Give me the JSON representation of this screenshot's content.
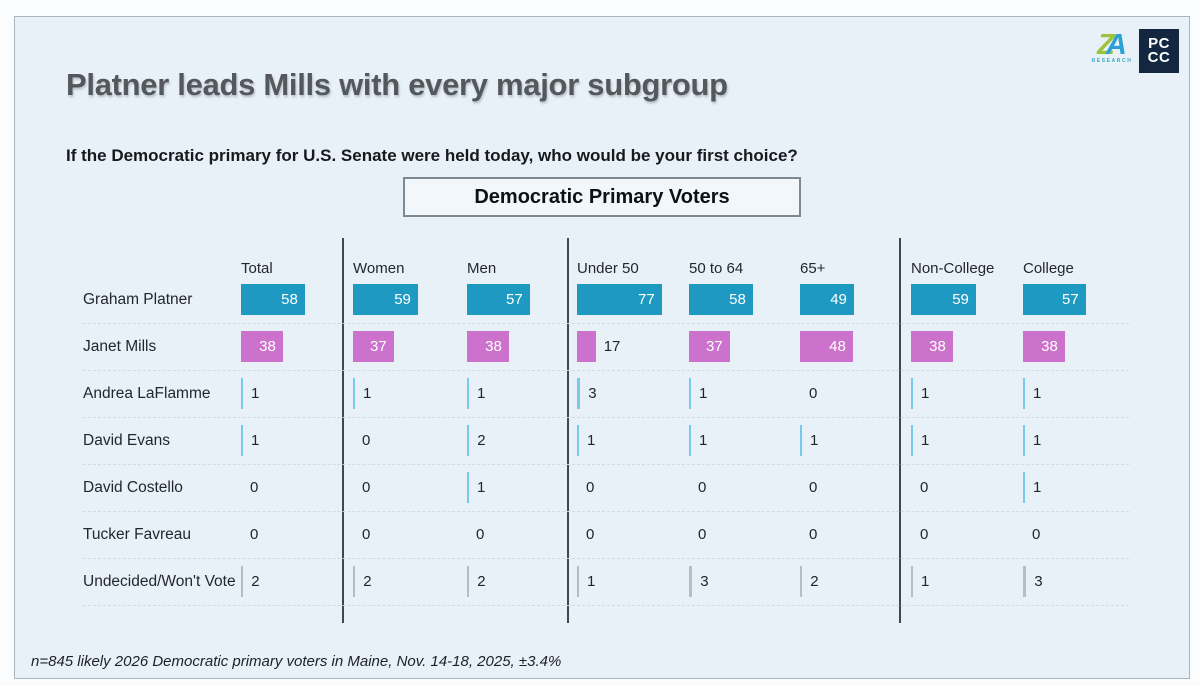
{
  "header": {
    "title": "Platner leads Mills with every major subgroup",
    "subtitle": "If the Democratic primary for U.S. Senate were held today, who would be your first choice?",
    "box_label": "Democratic Primary Voters"
  },
  "logos": {
    "za_letter_z": "Z",
    "za_letter_a": "A",
    "za_subtext": "RESEARCH",
    "pccc_line1": "PC",
    "pccc_line2": "CC"
  },
  "footer": {
    "note": "n=845 likely 2026 Democratic primary voters in Maine, Nov. 14-18, 2025, ±3.4%"
  },
  "colors": {
    "card_background": "#e8f1f8",
    "platner_bar": "#1e99c2",
    "mills_bar": "#cd72cc",
    "minor_candidate_bar": "#76cbea",
    "undecided_bar": "#b9bdc2",
    "bar_label_inside": "#ffffff",
    "bar_label_outside": "#22262b",
    "group_divider": "#43474b"
  },
  "chart_data": {
    "type": "bar",
    "orientation": "horizontal",
    "title": "Platner leads Mills with every major subgroup",
    "subtitle": "If the Democratic primary for U.S. Senate were held today, who would be your first choice?",
    "population_label": "Democratic Primary Voters",
    "unit": "percent",
    "xlim": [
      0,
      100
    ],
    "grid": false,
    "legend_position": "none",
    "categories": [
      "Total",
      "Women",
      "Men",
      "Under 50",
      "50 to 64",
      "65+",
      "Non-College",
      "College"
    ],
    "category_groups": [
      [
        "Total"
      ],
      [
        "Women",
        "Men"
      ],
      [
        "Under 50",
        "50 to 64",
        "65+"
      ],
      [
        "Non-College",
        "College"
      ]
    ],
    "series": [
      {
        "name": "Graham Platner",
        "color": "#1e99c2",
        "values": [
          58,
          59,
          57,
          77,
          58,
          49,
          59,
          57
        ]
      },
      {
        "name": "Janet Mills",
        "color": "#cd72cc",
        "values": [
          38,
          37,
          38,
          17,
          37,
          48,
          38,
          38
        ]
      },
      {
        "name": "Andrea LaFlamme",
        "color": "#76cbea",
        "values": [
          1,
          1,
          1,
          3,
          1,
          0,
          1,
          1
        ]
      },
      {
        "name": "David Evans",
        "color": "#76cbea",
        "values": [
          1,
          0,
          2,
          1,
          1,
          1,
          1,
          1
        ]
      },
      {
        "name": "David Costello",
        "color": "#76cbea",
        "values": [
          0,
          0,
          1,
          0,
          0,
          0,
          0,
          1
        ]
      },
      {
        "name": "Tucker Favreau",
        "color": "#76cbea",
        "values": [
          0,
          0,
          0,
          0,
          0,
          0,
          0,
          0
        ]
      },
      {
        "name": "Undecided/Won't Vote",
        "color": "#b9bdc2",
        "values": [
          2,
          2,
          2,
          1,
          3,
          2,
          1,
          3
        ]
      }
    ],
    "annotation": "n=845 likely 2026 Democratic primary voters in Maine, Nov. 14-18, 2025, ±3.4%"
  }
}
